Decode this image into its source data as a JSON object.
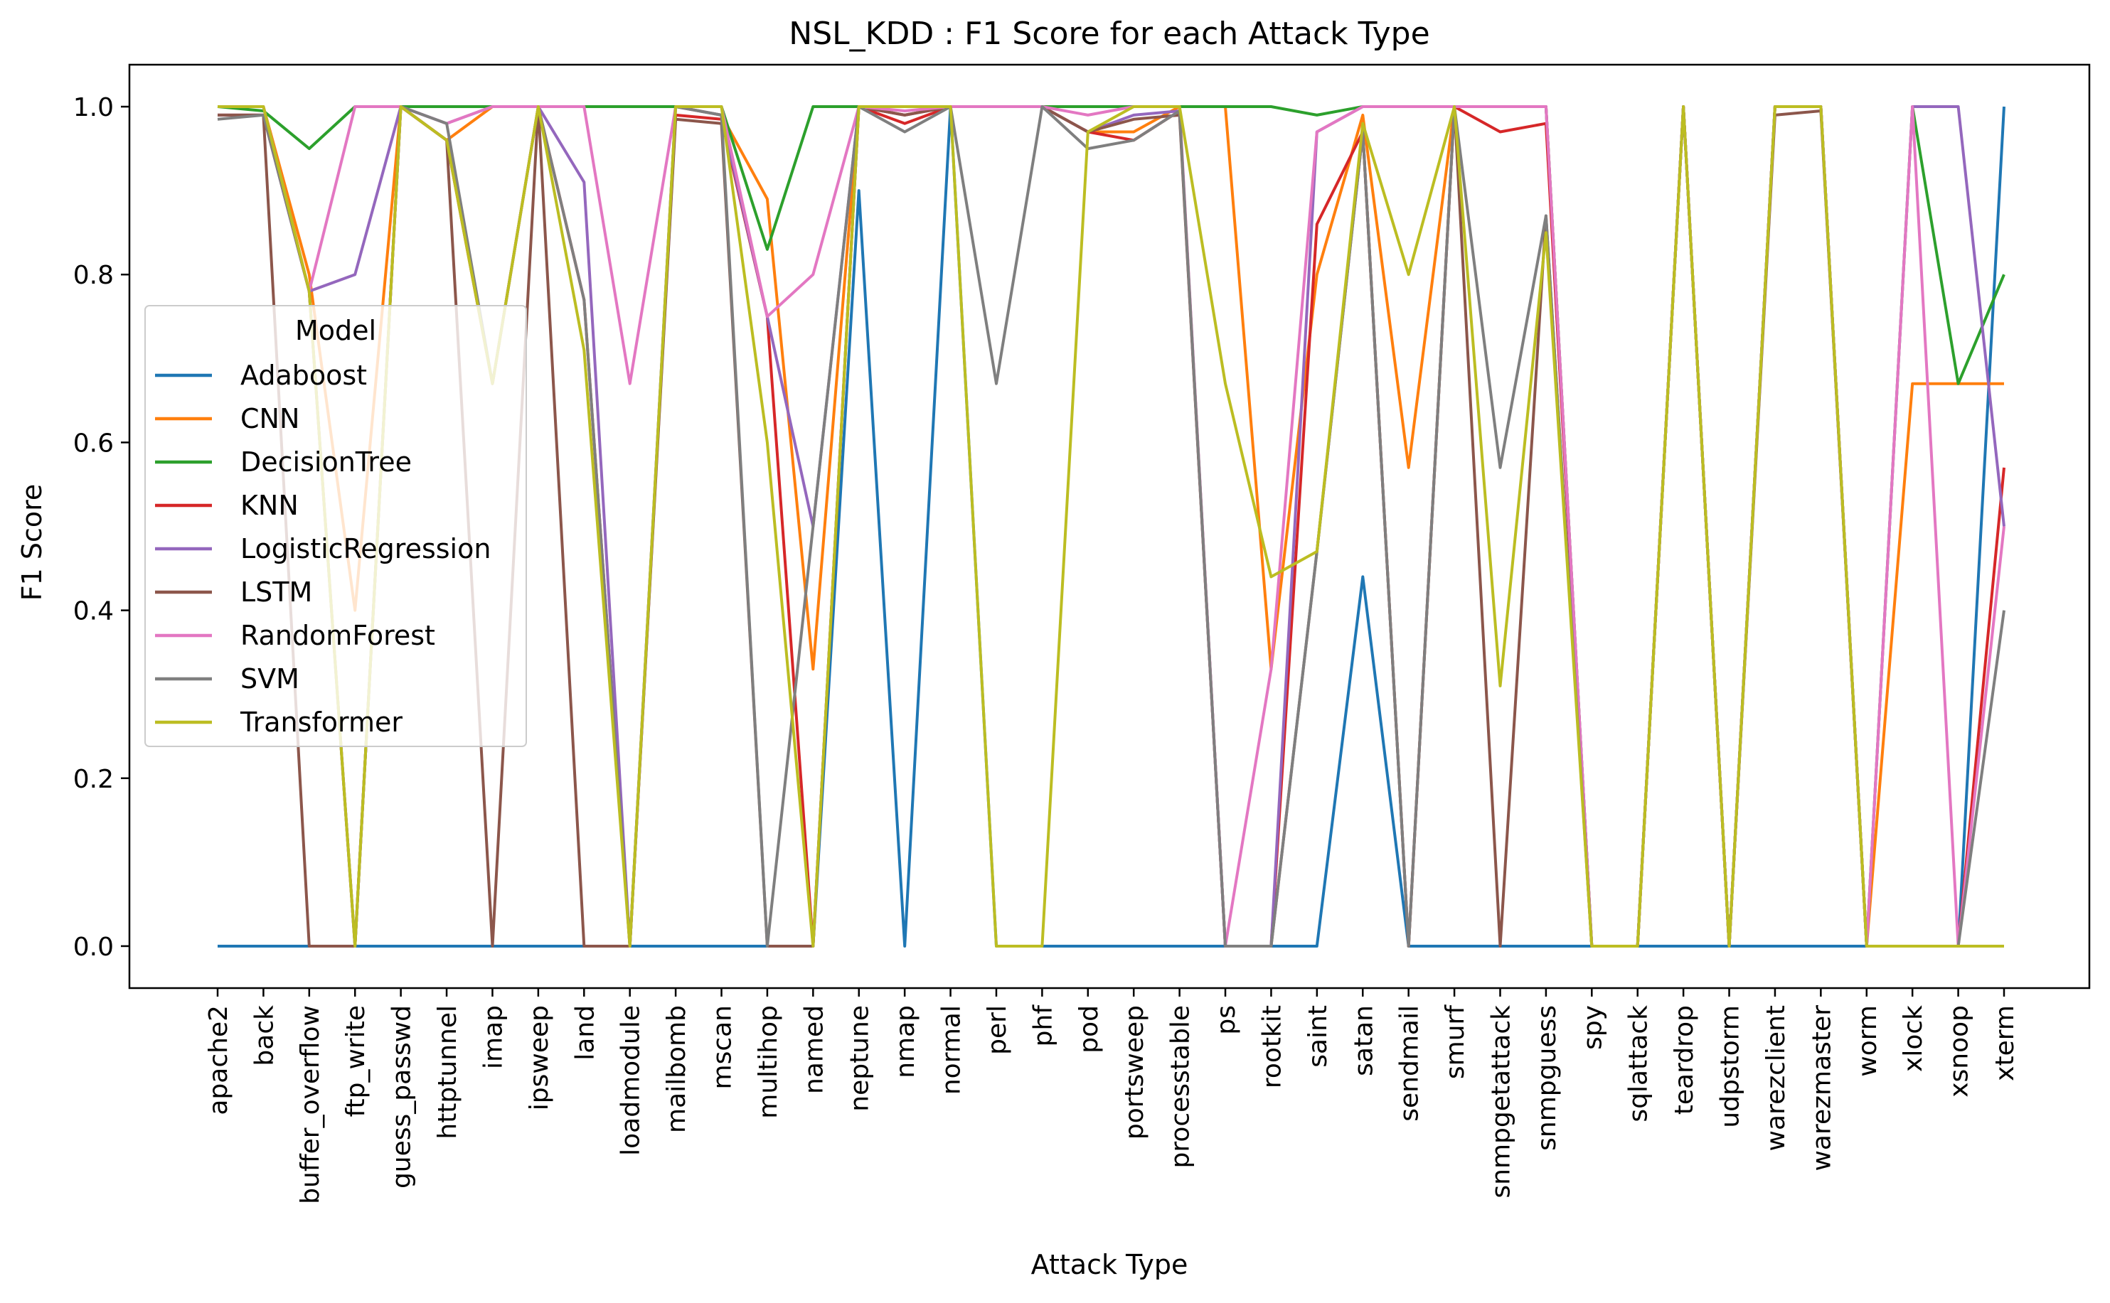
{
  "chart_data": {
    "type": "line",
    "title": "NSL_KDD : F1 Score for each Attack Type",
    "xlabel": "Attack Type",
    "ylabel": "F1 Score",
    "ylim": [
      -0.05,
      1.05
    ],
    "yticks": [
      "0.0",
      "0.2",
      "0.4",
      "0.6",
      "0.8",
      "1.0"
    ],
    "grid": false,
    "legend_title": "Model",
    "legend_position": "center-left",
    "categories": [
      "apache2",
      "back",
      "buffer_overflow",
      "ftp_write",
      "guess_passwd",
      "httptunnel",
      "imap",
      "ipsweep",
      "land",
      "loadmodule",
      "mailbomb",
      "mscan",
      "multihop",
      "named",
      "neptune",
      "nmap",
      "normal",
      "perl",
      "phf",
      "pod",
      "portsweep",
      "processtable",
      "ps",
      "rootkit",
      "saint",
      "satan",
      "sendmail",
      "smurf",
      "snmpgetattack",
      "snmpguess",
      "spy",
      "sqlattack",
      "teardrop",
      "udpstorm",
      "warezclient",
      "warezmaster",
      "worm",
      "xlock",
      "xsnoop",
      "xterm"
    ],
    "series": [
      {
        "name": "Adaboost",
        "color": "#1f77b4",
        "values": [
          0,
          0,
          0,
          0,
          0,
          0,
          0,
          0,
          0,
          0,
          0,
          0,
          0,
          0,
          0.9,
          0,
          1.0,
          0,
          0,
          0,
          0,
          0,
          0,
          0,
          0,
          0.44,
          0,
          0,
          0,
          0,
          0,
          0,
          0,
          0,
          0,
          0,
          0,
          0,
          0,
          1.0
        ]
      },
      {
        "name": "CNN",
        "color": "#ff7f0e",
        "values": [
          1.0,
          1.0,
          0.8,
          0.4,
          1.0,
          0.96,
          1.0,
          1.0,
          1.0,
          1.0,
          1.0,
          0.99,
          0.89,
          0.33,
          1.0,
          0.99,
          1.0,
          1.0,
          1.0,
          0.97,
          0.97,
          1.0,
          1.0,
          0.33,
          0.8,
          0.99,
          0.57,
          1.0,
          1.0,
          1.0,
          0,
          0,
          1.0,
          0,
          1.0,
          1.0,
          0,
          0.67,
          0.67,
          0.67
        ]
      },
      {
        "name": "DecisionTree",
        "color": "#2ca02c",
        "values": [
          1.0,
          0.995,
          0.95,
          1.0,
          1.0,
          1.0,
          1.0,
          1.0,
          1.0,
          1.0,
          1.0,
          1.0,
          0.83,
          1.0,
          1.0,
          1.0,
          1.0,
          1.0,
          1.0,
          1.0,
          1.0,
          1.0,
          1.0,
          1.0,
          0.99,
          1.0,
          1.0,
          1.0,
          1.0,
          1.0,
          0,
          0,
          1.0,
          0,
          1.0,
          1.0,
          0,
          1.0,
          0.67,
          0.8
        ]
      },
      {
        "name": "KNN",
        "color": "#d62728",
        "values": [
          0.99,
          0.99,
          0.78,
          0,
          1.0,
          0.96,
          0.67,
          1.0,
          0.77,
          0,
          0.99,
          0.985,
          0.75,
          0,
          1.0,
          0.98,
          1.0,
          1.0,
          1.0,
          0.97,
          0.96,
          0.995,
          0,
          0,
          0.86,
          0.97,
          0,
          1.0,
          0.97,
          0.98,
          0,
          0,
          1.0,
          0,
          1.0,
          1.0,
          0,
          0,
          0,
          0.57
        ]
      },
      {
        "name": "LogisticRegression",
        "color": "#9467bd",
        "values": [
          0.99,
          0.99,
          0.78,
          0.8,
          1.0,
          0.98,
          1.0,
          1.0,
          0.91,
          0,
          1.0,
          0.99,
          0.75,
          0.5,
          1.0,
          0.99,
          1.0,
          1.0,
          1.0,
          0.97,
          0.99,
          0.995,
          0,
          0,
          0.97,
          1.0,
          1.0,
          1.0,
          1.0,
          1.0,
          0,
          0,
          1.0,
          0,
          1.0,
          1.0,
          0,
          1.0,
          1.0,
          0.5
        ]
      },
      {
        "name": "LSTM",
        "color": "#8c564b",
        "values": [
          0.99,
          0.99,
          0,
          0,
          1.0,
          0.96,
          0,
          1.0,
          0,
          0,
          0.985,
          0.98,
          0,
          0,
          1.0,
          0.99,
          1.0,
          1.0,
          1.0,
          0.97,
          0.985,
          0.99,
          0,
          0,
          0.47,
          0.97,
          0,
          1.0,
          0,
          0.87,
          0,
          0,
          1.0,
          0,
          0.99,
          0.995,
          0,
          0,
          0,
          0
        ]
      },
      {
        "name": "RandomForest",
        "color": "#e377c2",
        "values": [
          1.0,
          1.0,
          0.78,
          1.0,
          1.0,
          0.98,
          1.0,
          1.0,
          1.0,
          0.67,
          1.0,
          1.0,
          0.75,
          0.8,
          1.0,
          0.995,
          1.0,
          1.0,
          1.0,
          0.99,
          1.0,
          1.0,
          0,
          0.33,
          0.97,
          1.0,
          1.0,
          1.0,
          1.0,
          1.0,
          0,
          0,
          1.0,
          0,
          1.0,
          1.0,
          0,
          1.0,
          0,
          0.5
        ]
      },
      {
        "name": "SVM",
        "color": "#7f7f7f",
        "values": [
          0.985,
          0.99,
          0.78,
          0,
          1.0,
          0.98,
          0.67,
          1.0,
          0.77,
          0,
          1.0,
          0.99,
          0,
          0.5,
          1.0,
          0.97,
          1.0,
          0.67,
          1.0,
          0.95,
          0.96,
          0.995,
          0,
          0,
          0.47,
          0.97,
          0,
          1.0,
          0.57,
          0.87,
          0,
          0,
          1.0,
          0,
          1.0,
          1.0,
          0,
          0,
          0,
          0.4
        ]
      },
      {
        "name": "Transformer",
        "color": "#bcbd22",
        "values": [
          1.0,
          1.0,
          0.78,
          0,
          1.0,
          0.96,
          0.67,
          1.0,
          0.71,
          0,
          1.0,
          1.0,
          0.6,
          0,
          1.0,
          1.0,
          1.0,
          0,
          0,
          0.97,
          1.0,
          1.0,
          0.67,
          0.44,
          0.47,
          0.98,
          0.8,
          1.0,
          0.31,
          0.85,
          0,
          0,
          1.0,
          0,
          1.0,
          1.0,
          0,
          0,
          0,
          0
        ]
      }
    ]
  }
}
